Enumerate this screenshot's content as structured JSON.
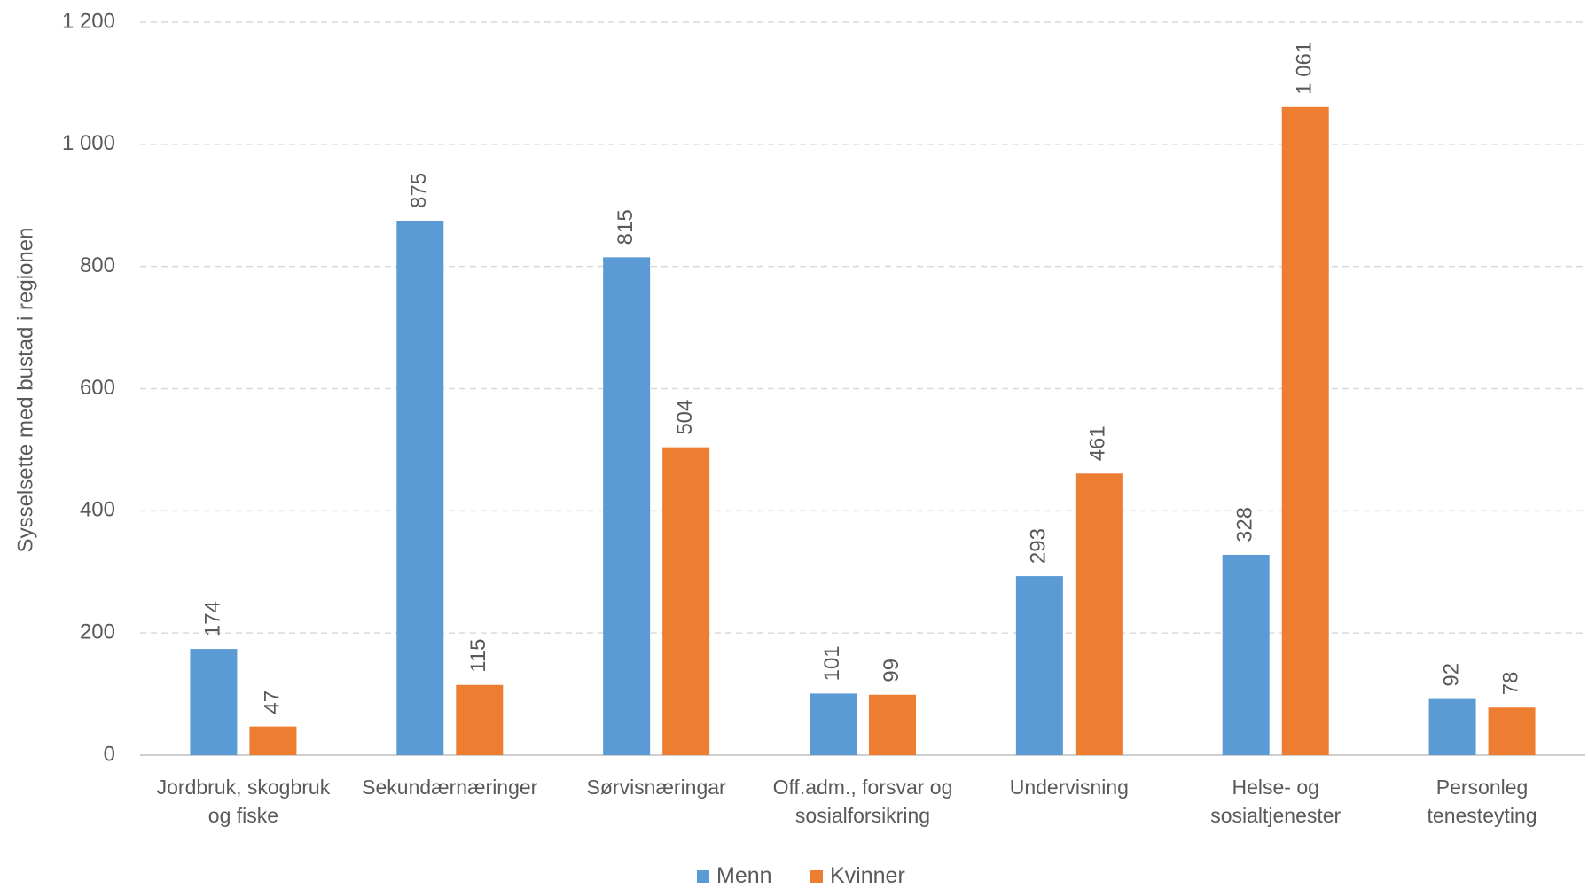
{
  "chart_data": {
    "type": "bar",
    "y_label": "Sysselsette med bustad i regionen",
    "categories": [
      "Jordbruk, skogbruk og fiske",
      "Sekundærnæringer",
      "Sørvisnæringar",
      "Off.adm., forsvar og sosialforsikring",
      "Undervisning",
      "Helse- og sosialtjenester",
      "Personleg tenesteyting"
    ],
    "series": [
      {
        "name": "Menn",
        "color": "#5b9bd5",
        "values": [
          174,
          875,
          815,
          101,
          293,
          328,
          92
        ]
      },
      {
        "name": "Kvinner",
        "color": "#ed7d31",
        "values": [
          47,
          115,
          504,
          99,
          461,
          1061,
          78
        ],
        "value_labels": [
          "47",
          "115",
          "504",
          "99",
          "461",
          "1 061",
          "78"
        ]
      }
    ],
    "ylim": [
      0,
      1200
    ],
    "yticks": [
      0,
      200,
      400,
      600,
      800,
      {
        "value": 1000,
        "label": "1 000"
      },
      {
        "value": 1200,
        "label": "1 200"
      }
    ],
    "grid": true,
    "legend": "bottom"
  }
}
